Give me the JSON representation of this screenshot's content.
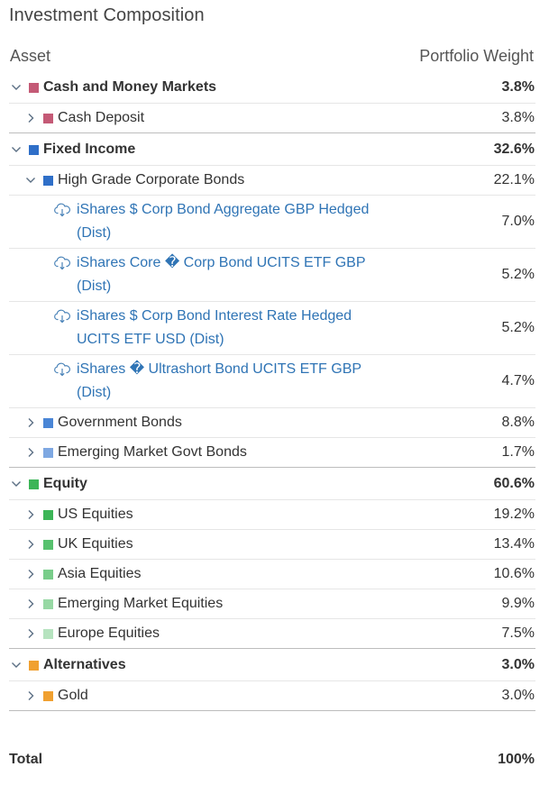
{
  "title": "Investment Composition",
  "header": {
    "asset": "Asset",
    "weight": "Portfolio Weight"
  },
  "groups": [
    {
      "name": "Cash and Money Markets",
      "weight": "3.8%",
      "color": "#c45a76",
      "expanded": true,
      "children": [
        {
          "name": "Cash Deposit",
          "weight": "3.8%",
          "color": "#c45a76",
          "expanded": false
        }
      ]
    },
    {
      "name": "Fixed Income",
      "weight": "32.6%",
      "color": "#2f6fc8",
      "expanded": true,
      "children": [
        {
          "name": "High Grade Corporate Bonds",
          "weight": "22.1%",
          "color": "#2f6fc8",
          "expanded": true,
          "funds": [
            {
              "line1": "iShares $ Corp Bond Aggregate GBP Hedged",
              "line2": "(Dist)",
              "weight": "7.0%"
            },
            {
              "line1": "iShares Core � Corp Bond UCITS ETF GBP",
              "line2": "(Dist)",
              "weight": "5.2%"
            },
            {
              "line1": "iShares $ Corp Bond Interest Rate Hedged",
              "line2": "UCITS ETF USD (Dist)",
              "weight": "5.2%"
            },
            {
              "line1": "iShares � Ultrashort Bond UCITS ETF GBP",
              "line2": "(Dist)",
              "weight": "4.7%"
            }
          ]
        },
        {
          "name": "Government Bonds",
          "weight": "8.8%",
          "color": "#4a86d6",
          "expanded": false
        },
        {
          "name": "Emerging Market Govt Bonds",
          "weight": "1.7%",
          "color": "#7ea8e2",
          "expanded": false
        }
      ]
    },
    {
      "name": "Equity",
      "weight": "60.6%",
      "color": "#3cb557",
      "expanded": true,
      "children": [
        {
          "name": "US Equities",
          "weight": "19.2%",
          "color": "#3cb557",
          "expanded": false
        },
        {
          "name": "UK Equities",
          "weight": "13.4%",
          "color": "#57c16e",
          "expanded": false
        },
        {
          "name": "Asia Equities",
          "weight": "10.6%",
          "color": "#79cd8a",
          "expanded": false
        },
        {
          "name": "Emerging Market Equities",
          "weight": "9.9%",
          "color": "#97d8a4",
          "expanded": false
        },
        {
          "name": "Europe Equities",
          "weight": "7.5%",
          "color": "#b6e3bf",
          "expanded": false
        }
      ]
    },
    {
      "name": "Alternatives",
      "weight": "3.0%",
      "color": "#f0a030",
      "expanded": true,
      "children": [
        {
          "name": "Gold",
          "weight": "3.0%",
          "color": "#f0a030",
          "expanded": false
        }
      ]
    }
  ],
  "total": {
    "label": "Total",
    "weight": "100%"
  },
  "icons": {
    "expanded": "chevron-down-icon",
    "collapsed": "chevron-right-icon",
    "fund": "cloud-download-icon"
  }
}
